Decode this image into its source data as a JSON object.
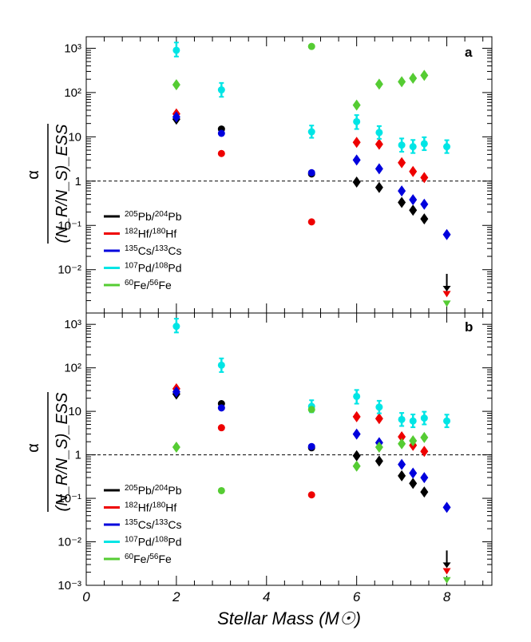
{
  "chart_data": {
    "type": "scatter",
    "xlabel": "Stellar Mass (M☉)",
    "xlim": [
      0,
      9
    ],
    "x_ticks": [
      "0",
      "2",
      "4",
      "6",
      "8"
    ],
    "y_scale": "log",
    "ylim": [
      0.001,
      2000
    ],
    "y_ticks": [
      "10⁻³",
      "10⁻²",
      "10⁻¹",
      "1",
      "10",
      "10²",
      "10³"
    ],
    "ylabel_numerator": "α",
    "ylabel_denominator": "(N_R/N_S)_ESS",
    "reference_line": 1,
    "legend": [
      {
        "label": "205Pb/204Pb",
        "color": "#000000"
      },
      {
        "label": "182Hf/180Hf",
        "color": "#ee0000"
      },
      {
        "label": "135Cs/133Cs",
        "color": "#0000dd"
      },
      {
        "label": "107Pd/108Pd",
        "color": "#00e5e5"
      },
      {
        "label": "60Fe/56Fe",
        "color": "#55cc33"
      }
    ],
    "panels": [
      {
        "letter": "a",
        "series": [
          {
            "name": "205Pb/204Pb",
            "color": "#000000",
            "points": [
              [
                2,
                25,
                "d"
              ],
              [
                3,
                15,
                "c"
              ],
              [
                5,
                1.45,
                "c"
              ],
              [
                6,
                0.95,
                "d"
              ],
              [
                6.5,
                0.72,
                "d"
              ],
              [
                7,
                0.33,
                "d"
              ],
              [
                7.25,
                0.22,
                "d"
              ],
              [
                7.5,
                0.14,
                "d"
              ]
            ]
          },
          {
            "name": "182Hf/180Hf",
            "color": "#ee0000",
            "points": [
              [
                2,
                33,
                "d"
              ],
              [
                3,
                4.2,
                "c"
              ],
              [
                5,
                0.12,
                "c"
              ],
              [
                6,
                7.5,
                "d"
              ],
              [
                6.5,
                6.8,
                "d"
              ],
              [
                7,
                2.6,
                "d"
              ],
              [
                7.25,
                1.65,
                "d"
              ],
              [
                7.5,
                1.2,
                "d"
              ],
              [
                8,
                0.0028,
                "t"
              ]
            ]
          },
          {
            "name": "135Cs/133Cs",
            "color": "#0000dd",
            "points": [
              [
                2,
                28,
                "d"
              ],
              [
                3,
                12,
                "c"
              ],
              [
                5,
                1.55,
                "c"
              ],
              [
                6,
                3.0,
                "d"
              ],
              [
                6.5,
                1.9,
                "d"
              ],
              [
                7,
                0.6,
                "d"
              ],
              [
                7.25,
                0.38,
                "d"
              ],
              [
                7.5,
                0.3,
                "d"
              ],
              [
                8,
                0.062,
                "d"
              ]
            ]
          },
          {
            "name": "107Pd/108Pd",
            "color": "#00e5e5",
            "points": [
              [
                2,
                900,
                "c",
                1350,
                650
              ],
              [
                3,
                115,
                "c",
                165,
                80
              ],
              [
                5,
                13,
                "c",
                18,
                9.5
              ],
              [
                6,
                22,
                "c",
                31,
                15
              ],
              [
                6.5,
                12.5,
                "c",
                17.5,
                9
              ],
              [
                7,
                6.5,
                "c",
                9.2,
                4.6
              ],
              [
                7.25,
                6.0,
                "c",
                8.5,
                4.3
              ],
              [
                7.5,
                7.0,
                "c",
                9.8,
                5.0
              ],
              [
                8,
                6.0,
                "c",
                8.4,
                4.3
              ]
            ]
          },
          {
            "name": "60Fe/56Fe",
            "color": "#55cc33",
            "points": [
              [
                2,
                150,
                "d"
              ],
              [
                5,
                1100,
                "c"
              ],
              [
                6,
                52,
                "d"
              ],
              [
                6.5,
                155,
                "d"
              ],
              [
                7,
                175,
                "d"
              ],
              [
                7.25,
                210,
                "d"
              ],
              [
                7.5,
                245,
                "d"
              ],
              [
                8,
                0.0017,
                "t"
              ]
            ]
          }
        ],
        "upper_limit_arrow": {
          "x": 8,
          "y": 0.0045,
          "color": "#000000"
        }
      },
      {
        "letter": "b",
        "series": [
          {
            "name": "205Pb/204Pb",
            "color": "#000000",
            "points": [
              [
                2,
                25,
                "d"
              ],
              [
                3,
                15,
                "c"
              ],
              [
                5,
                1.45,
                "c"
              ],
              [
                6,
                0.95,
                "d"
              ],
              [
                6.5,
                0.72,
                "d"
              ],
              [
                7,
                0.33,
                "d"
              ],
              [
                7.25,
                0.22,
                "d"
              ],
              [
                7.5,
                0.14,
                "d"
              ]
            ]
          },
          {
            "name": "182Hf/180Hf",
            "color": "#ee0000",
            "points": [
              [
                2,
                33,
                "d"
              ],
              [
                3,
                4.2,
                "c"
              ],
              [
                5,
                0.12,
                "c"
              ],
              [
                6,
                7.5,
                "d"
              ],
              [
                6.5,
                6.8,
                "d"
              ],
              [
                7,
                2.6,
                "d"
              ],
              [
                7.25,
                1.65,
                "d"
              ],
              [
                7.5,
                1.2,
                "d"
              ],
              [
                8,
                0.0021,
                "t"
              ]
            ]
          },
          {
            "name": "135Cs/133Cs",
            "color": "#0000dd",
            "points": [
              [
                2,
                28,
                "d"
              ],
              [
                3,
                12,
                "c"
              ],
              [
                5,
                1.55,
                "c"
              ],
              [
                6,
                3.0,
                "d"
              ],
              [
                6.5,
                1.9,
                "d"
              ],
              [
                7,
                0.6,
                "d"
              ],
              [
                7.25,
                0.38,
                "d"
              ],
              [
                7.5,
                0.3,
                "d"
              ],
              [
                8,
                0.062,
                "d"
              ]
            ]
          },
          {
            "name": "107Pd/108Pd",
            "color": "#00e5e5",
            "points": [
              [
                2,
                900,
                "c",
                1350,
                650
              ],
              [
                3,
                115,
                "c",
                165,
                80
              ],
              [
                5,
                13,
                "c",
                18,
                9.5
              ],
              [
                6,
                22,
                "c",
                31,
                15
              ],
              [
                6.5,
                12.5,
                "c",
                17.5,
                9
              ],
              [
                7,
                6.5,
                "c",
                9.2,
                4.6
              ],
              [
                7.25,
                6.0,
                "c",
                8.5,
                4.3
              ],
              [
                7.5,
                7.0,
                "c",
                9.8,
                5.0
              ],
              [
                8,
                6.0,
                "c",
                8.4,
                4.3
              ]
            ]
          },
          {
            "name": "60Fe/56Fe",
            "color": "#55cc33",
            "points": [
              [
                2,
                1.5,
                "d"
              ],
              [
                3,
                0.15,
                "c"
              ],
              [
                5,
                11,
                "c"
              ],
              [
                6,
                0.55,
                "d"
              ],
              [
                6.5,
                1.5,
                "d"
              ],
              [
                7,
                1.8,
                "d"
              ],
              [
                7.25,
                2.1,
                "d"
              ],
              [
                7.5,
                2.5,
                "d"
              ],
              [
                8,
                0.0013,
                "t"
              ]
            ]
          }
        ],
        "upper_limit_arrow": {
          "x": 8,
          "y": 0.0035,
          "color": "#000000"
        }
      }
    ]
  }
}
